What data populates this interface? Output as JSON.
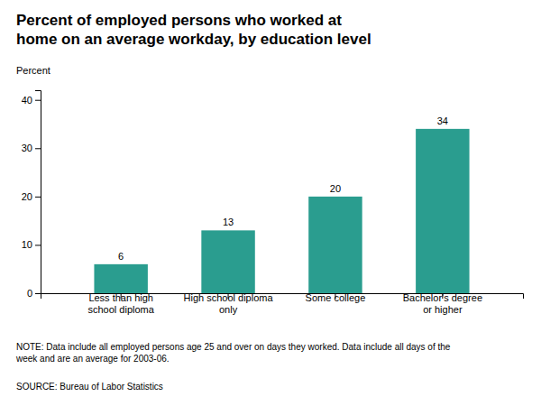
{
  "chart_data": {
    "type": "bar",
    "title": "Percent of employed persons who worked at\nhome on an average workday, by education level",
    "ylabel": "Percent",
    "categories": [
      "Less than high\nschool diploma",
      "High school diploma\nonly",
      "Some college",
      "Bachelor's degree\nor higher"
    ],
    "values": [
      6,
      13,
      20,
      34
    ],
    "color": "#2a9d8f",
    "ylim": [
      0,
      42
    ],
    "yticks": [
      0,
      10,
      20,
      30,
      40
    ],
    "grid": false,
    "data_labels": true,
    "annotations": [
      "NOTE: Data include all employed persons age 25 and over on days they worked. Data include all days of the\nweek and are an average for 2003-06.",
      "SOURCE: Bureau of Labor Statistics"
    ]
  }
}
